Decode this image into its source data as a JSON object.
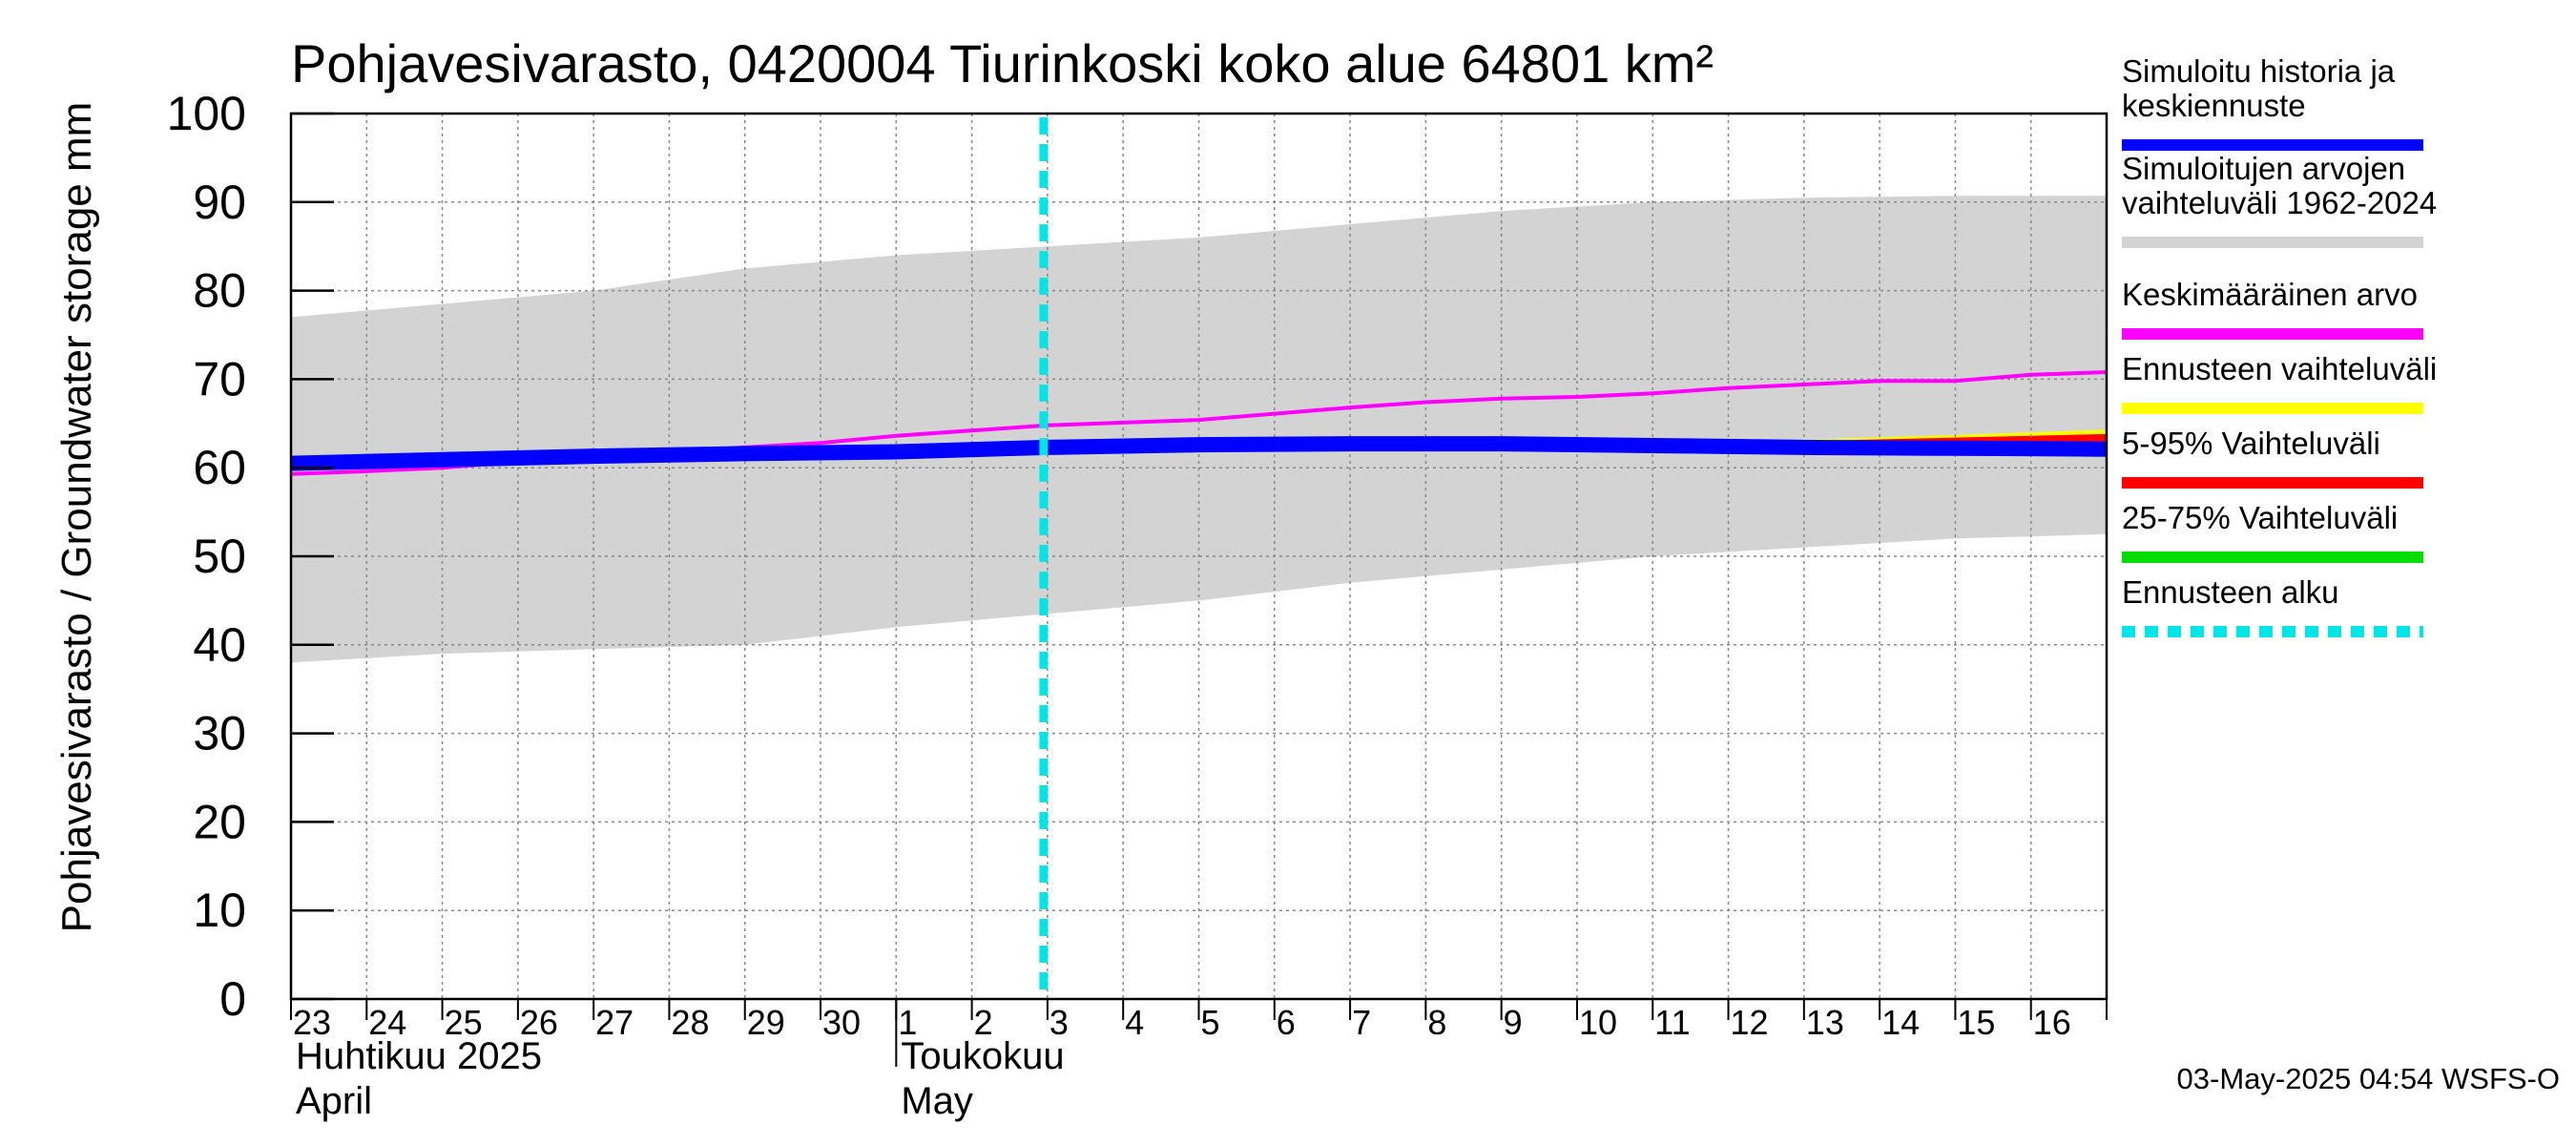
{
  "chart_data": {
    "type": "area",
    "title": "Pohjavesivarasto, 0420004 Tiurinkoski koko alue 64801 km²",
    "ylabel": "Pohjavesivarasto / Groundwater storage   mm",
    "ylim": [
      0,
      100
    ],
    "yticks": [
      0,
      10,
      20,
      30,
      40,
      50,
      60,
      70,
      80,
      90,
      100
    ],
    "x_day_labels": [
      "23",
      "24",
      "25",
      "26",
      "27",
      "28",
      "29",
      "30",
      "1",
      "2",
      "3",
      "4",
      "5",
      "6",
      "7",
      "8",
      "9",
      "10",
      "11",
      "12",
      "13",
      "14",
      "15",
      "16"
    ],
    "x_start_day": 23,
    "x_range_days": [
      0,
      24
    ],
    "month_labels": [
      {
        "line1": "Huhtikuu  2025",
        "line2": "April",
        "start_day_index": 0
      },
      {
        "line1": "Toukokuu",
        "line2": "May",
        "start_day_index": 8
      }
    ],
    "grid": true,
    "series": [
      {
        "name": "Simuloitujen arvojen vaihteluväli 1962-2024",
        "kind": "band",
        "color": "#d3d3d3",
        "x": [
          0,
          2,
          4,
          6,
          8,
          10,
          12,
          14,
          16,
          18,
          20,
          22,
          24
        ],
        "upper": [
          77,
          78.5,
          80,
          82.5,
          84,
          85,
          86,
          87.5,
          89,
          90,
          90.5,
          90.7,
          90.7
        ],
        "lower": [
          38,
          39,
          39.5,
          40,
          42,
          43.5,
          45,
          47,
          48.5,
          50,
          51,
          52,
          52.5
        ]
      },
      {
        "name": "Ennusteen vaihteluväli",
        "kind": "band",
        "color": "#ffff00",
        "x": [
          18,
          20,
          22,
          24
        ],
        "upper": [
          62.8,
          63.2,
          63.7,
          64.3
        ],
        "lower": [
          62.5,
          62.2,
          62,
          61.8
        ]
      },
      {
        "name": "5-95% Vaihteluväli",
        "kind": "band",
        "color": "#ff0000",
        "x": [
          18,
          20,
          22,
          24
        ],
        "upper": [
          62.7,
          63.0,
          63.4,
          63.8
        ],
        "lower": [
          62.5,
          62.2,
          62,
          61.8
        ]
      },
      {
        "name": "25-75% Vaihteluväli",
        "kind": "band",
        "color": "#00dd00",
        "x": [
          18,
          20,
          22,
          24
        ],
        "upper": [
          62.6,
          62.5,
          62.4,
          62.3
        ],
        "lower": [
          62.5,
          62.2,
          62,
          61.8
        ]
      },
      {
        "name": "Keskimääräinen arvo",
        "kind": "line",
        "color": "#ff00ff",
        "x": [
          0,
          1,
          2,
          3,
          4,
          5,
          6,
          7,
          8,
          9,
          10,
          11,
          12,
          13,
          14,
          15,
          16,
          17,
          18,
          19,
          20,
          21,
          22,
          23,
          24
        ],
        "values": [
          59.3,
          59.6,
          60,
          60.7,
          61.3,
          61.8,
          62.3,
          62.8,
          63.6,
          64.2,
          64.8,
          65.1,
          65.4,
          66.1,
          66.8,
          67.4,
          67.8,
          68,
          68.4,
          69,
          69.4,
          69.8,
          69.8,
          70.5,
          70.8
        ]
      },
      {
        "name": "Simuloitu historia ja keskiennuste",
        "kind": "line",
        "color": "#0000ff",
        "x": [
          0,
          2,
          4,
          6,
          8,
          10,
          12,
          14,
          16,
          18,
          20,
          22,
          24
        ],
        "values": [
          60.5,
          60.9,
          61.3,
          61.6,
          61.8,
          62.3,
          62.6,
          62.7,
          62.7,
          62.5,
          62.3,
          62.2,
          62.1
        ]
      }
    ],
    "forecast_start": {
      "name": "Ennusteen alku",
      "x": 10,
      "color": "#00e5e5"
    },
    "legend_placement": "right",
    "legend": [
      {
        "label": "Simuloitu historia ja\nkeskiennuste",
        "color": "#0000ff"
      },
      {
        "label": "Simuloitujen arvojen\nvaihteluväli 1962-2024",
        "color": "#d3d3d3"
      },
      {
        "label": "Keskimääräinen arvo",
        "color": "#ff00ff"
      },
      {
        "label": "Ennusteen vaihteluväli",
        "color": "#ffff00"
      },
      {
        "label": "5-95% Vaihteluväli",
        "color": "#ff0000"
      },
      {
        "label": "25-75% Vaihteluväli",
        "color": "#00dd00"
      },
      {
        "label": "Ennusteen alku",
        "color": "#00e5e5"
      }
    ],
    "footer": "03-May-2025 04:54 WSFS-O"
  }
}
